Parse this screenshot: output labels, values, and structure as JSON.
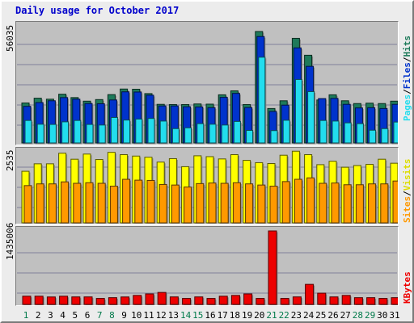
{
  "title": "Daily usage for October 2017",
  "colors": {
    "hits": "#1e7a5a",
    "files": "#0033cc",
    "pages": "#22ddee",
    "visits": "#ffff00",
    "sites": "#ff9900",
    "kbytes": "#ee0000",
    "weekday_label": "#000000",
    "weekend_label": "#007a4a"
  },
  "labels": {
    "top_max": "56035",
    "mid_max": "2535",
    "bot_max": "1435006",
    "right_top": {
      "pages": "Pages",
      "sep1": "/",
      "files": "Files",
      "sep2": "/",
      "hits": "Hits"
    },
    "right_mid": {
      "sites": "Sites",
      "sep": "/",
      "visits": "Visits"
    },
    "right_bot": {
      "kbytes": "KBytes"
    }
  },
  "chart_data": [
    {
      "type": "bar",
      "title": "Daily usage for October 2017",
      "categories": [
        "1",
        "2",
        "3",
        "4",
        "5",
        "6",
        "7",
        "8",
        "9",
        "10",
        "11",
        "12",
        "13",
        "14",
        "15",
        "16",
        "17",
        "18",
        "19",
        "20",
        "21",
        "22",
        "23",
        "24",
        "25",
        "26",
        "27",
        "28",
        "29",
        "30",
        "31"
      ],
      "weekend_days": [
        "1",
        "7",
        "8",
        "14",
        "15",
        "21",
        "22",
        "28",
        "29"
      ],
      "ylim": [
        0,
        56035
      ],
      "series": [
        {
          "name": "Hits",
          "values": [
            20100,
            22500,
            22000,
            24500,
            22800,
            21000,
            21800,
            24300,
            27100,
            27000,
            24800,
            19400,
            19300,
            19300,
            19600,
            19500,
            24200,
            26200,
            19300,
            56035,
            17300,
            21200,
            52600,
            44100,
            21600,
            24200,
            21200,
            19800,
            20000,
            19800,
            21000
          ]
        },
        {
          "name": "Files",
          "values": [
            18400,
            20300,
            21200,
            22800,
            22000,
            19800,
            19700,
            21600,
            25700,
            25600,
            24000,
            18600,
            18600,
            18200,
            18100,
            17700,
            22900,
            24900,
            17800,
            53500,
            15800,
            19000,
            47800,
            38500,
            22300,
            22400,
            19400,
            17600,
            17700,
            17300,
            19400
          ]
        },
        {
          "name": "Pages",
          "values": [
            11300,
            9400,
            9300,
            10600,
            11300,
            9300,
            9000,
            12800,
            11500,
            12000,
            12300,
            11000,
            7200,
            7600,
            9700,
            9400,
            9000,
            10800,
            6300,
            43100,
            6200,
            11400,
            31900,
            25800,
            11300,
            11000,
            10100,
            9700,
            6400,
            7200,
            10500
          ]
        }
      ]
    },
    {
      "type": "bar",
      "categories": [
        "1",
        "2",
        "3",
        "4",
        "5",
        "6",
        "7",
        "8",
        "9",
        "10",
        "11",
        "12",
        "13",
        "14",
        "15",
        "16",
        "17",
        "18",
        "19",
        "20",
        "21",
        "22",
        "23",
        "24",
        "25",
        "26",
        "27",
        "28",
        "29",
        "30",
        "31"
      ],
      "ylim": [
        0,
        2535
      ],
      "series": [
        {
          "name": "Visits",
          "values": [
            1800,
            2060,
            2060,
            2430,
            2220,
            2400,
            2210,
            2460,
            2380,
            2330,
            2290,
            2120,
            2240,
            1960,
            2340,
            2310,
            2230,
            2380,
            2180,
            2100,
            2070,
            2360,
            2500,
            2380,
            2030,
            2150,
            1940,
            2000,
            2040,
            2220,
            2080
          ]
        },
        {
          "name": "Sites",
          "values": [
            1300,
            1360,
            1360,
            1430,
            1380,
            1400,
            1380,
            1280,
            1520,
            1490,
            1480,
            1340,
            1320,
            1250,
            1370,
            1390,
            1380,
            1400,
            1360,
            1320,
            1280,
            1440,
            1520,
            1570,
            1380,
            1390,
            1330,
            1330,
            1360,
            1360,
            1460
          ]
        }
      ]
    },
    {
      "type": "bar",
      "categories": [
        "1",
        "2",
        "3",
        "4",
        "5",
        "6",
        "7",
        "8",
        "9",
        "10",
        "11",
        "12",
        "13",
        "14",
        "15",
        "16",
        "17",
        "18",
        "19",
        "20",
        "21",
        "22",
        "23",
        "24",
        "25",
        "26",
        "27",
        "28",
        "29",
        "30",
        "31"
      ],
      "ylim": [
        0,
        1435006
      ],
      "series": [
        {
          "name": "KBytes",
          "values": [
            161000,
            161000,
            146000,
            161000,
            147000,
            147000,
            117000,
            132000,
            146000,
            176000,
            205000,
            234000,
            147000,
            117000,
            147000,
            117000,
            161000,
            176000,
            205000,
            117000,
            1435006,
            117000,
            147000,
            392000,
            220000,
            147000,
            176000,
            132000,
            132000,
            117000,
            132000
          ]
        }
      ]
    }
  ]
}
